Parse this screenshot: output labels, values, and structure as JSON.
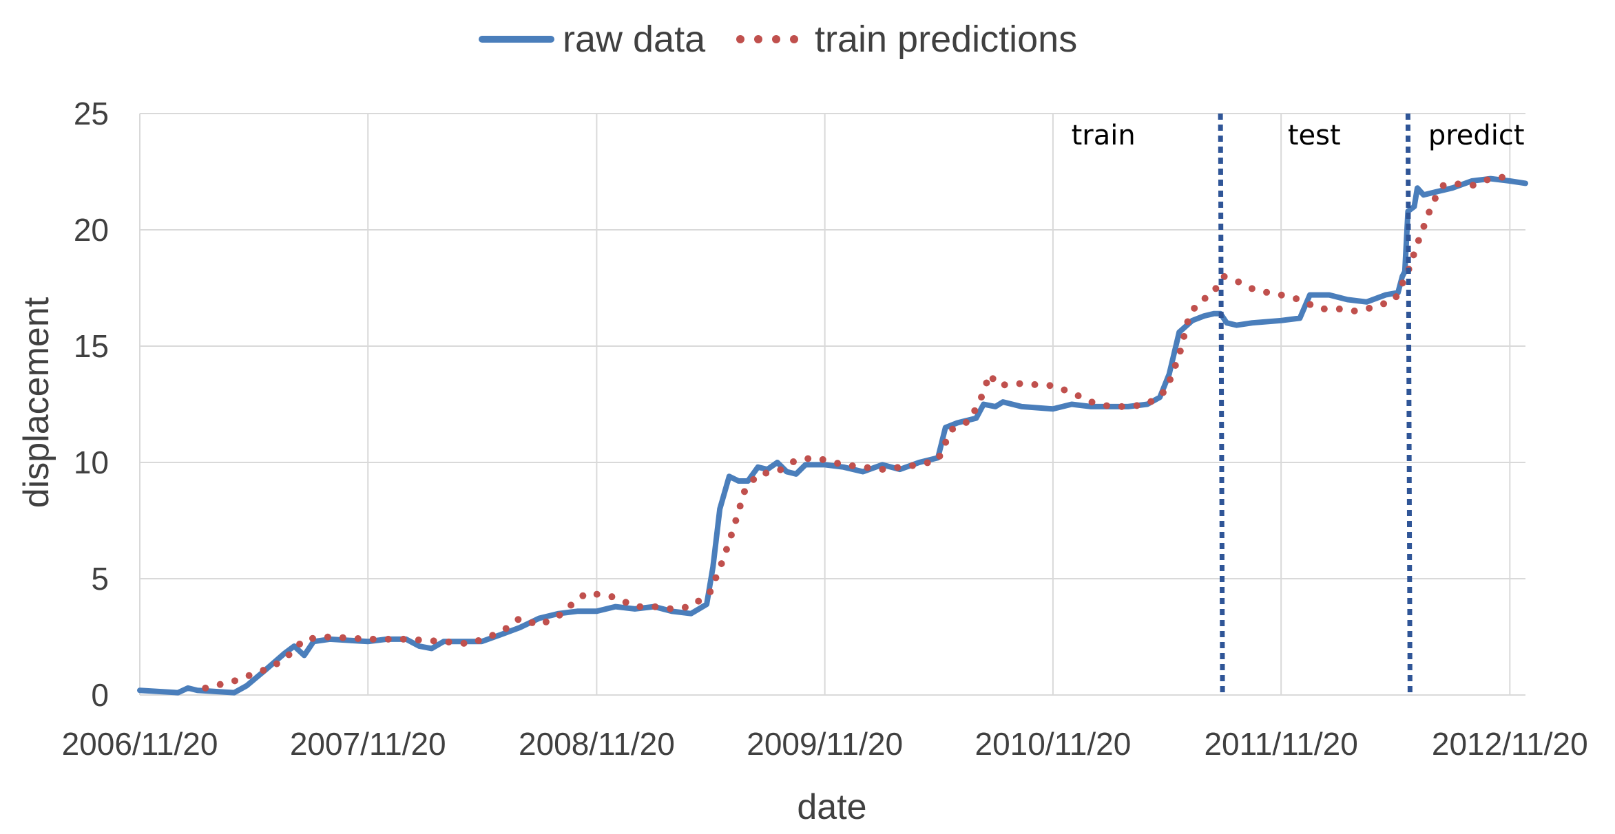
{
  "chart_data": {
    "type": "line",
    "title": "",
    "xlabel": "date",
    "ylabel": "displacement",
    "x_axis": {
      "ticks": [
        "2006/11/20",
        "2007/11/20",
        "2008/11/20",
        "2009/11/20",
        "2010/11/20",
        "2011/11/20",
        "2012/11/20"
      ],
      "range": [
        "2006/11/20",
        "2012/12/15"
      ]
    },
    "ylim": [
      0,
      25
    ],
    "yticks": [
      0,
      5,
      10,
      15,
      20,
      25
    ],
    "grid": true,
    "legend": "top-center",
    "regions": [
      {
        "label": "train",
        "boundary_end": "2011/08/15"
      },
      {
        "label": "test",
        "boundary_end": "2012/06/10"
      },
      {
        "label": "predict"
      }
    ],
    "series": [
      {
        "name": "raw data",
        "style": "solid",
        "color": "#4a7ebb",
        "points": [
          [
            "2006/11/20",
            0.2
          ],
          [
            "2007/01/20",
            0.1
          ],
          [
            "2007/02/05",
            0.3
          ],
          [
            "2007/02/20",
            0.2
          ],
          [
            "2007/04/20",
            0.1
          ],
          [
            "2007/05/10",
            0.4
          ],
          [
            "2007/06/10",
            1.1
          ],
          [
            "2007/07/10",
            1.8
          ],
          [
            "2007/07/25",
            2.1
          ],
          [
            "2007/08/10",
            1.7
          ],
          [
            "2007/08/25",
            2.3
          ],
          [
            "2007/09/20",
            2.4
          ],
          [
            "2007/11/20",
            2.3
          ],
          [
            "2007/12/20",
            2.4
          ],
          [
            "2008/01/20",
            2.4
          ],
          [
            "2008/02/10",
            2.1
          ],
          [
            "2008/03/01",
            2.0
          ],
          [
            "2008/03/20",
            2.3
          ],
          [
            "2008/04/20",
            2.3
          ],
          [
            "2008/05/20",
            2.3
          ],
          [
            "2008/06/20",
            2.6
          ],
          [
            "2008/07/20",
            2.9
          ],
          [
            "2008/08/20",
            3.3
          ],
          [
            "2008/09/20",
            3.5
          ],
          [
            "2008/10/20",
            3.6
          ],
          [
            "2008/11/20",
            3.6
          ],
          [
            "2008/12/20",
            3.8
          ],
          [
            "2009/01/20",
            3.7
          ],
          [
            "2009/02/20",
            3.8
          ],
          [
            "2009/03/20",
            3.6
          ],
          [
            "2009/04/20",
            3.5
          ],
          [
            "2009/05/15",
            3.9
          ],
          [
            "2009/05/25",
            5.5
          ],
          [
            "2009/06/05",
            8.0
          ],
          [
            "2009/06/20",
            9.4
          ],
          [
            "2009/07/05",
            9.2
          ],
          [
            "2009/07/20",
            9.2
          ],
          [
            "2009/08/05",
            9.8
          ],
          [
            "2009/08/20",
            9.7
          ],
          [
            "2009/09/05",
            10.0
          ],
          [
            "2009/09/20",
            9.6
          ],
          [
            "2009/10/05",
            9.5
          ],
          [
            "2009/10/20",
            9.9
          ],
          [
            "2009/11/20",
            9.9
          ],
          [
            "2009/12/20",
            9.8
          ],
          [
            "2010/01/20",
            9.6
          ],
          [
            "2010/02/20",
            9.9
          ],
          [
            "2010/03/20",
            9.7
          ],
          [
            "2010/04/20",
            10.0
          ],
          [
            "2010/05/20",
            10.2
          ],
          [
            "2010/06/01",
            11.5
          ],
          [
            "2010/06/20",
            11.7
          ],
          [
            "2010/07/20",
            11.9
          ],
          [
            "2010/08/01",
            12.5
          ],
          [
            "2010/08/20",
            12.4
          ],
          [
            "2010/09/01",
            12.6
          ],
          [
            "2010/10/01",
            12.4
          ],
          [
            "2010/11/20",
            12.3
          ],
          [
            "2010/12/20",
            12.5
          ],
          [
            "2011/01/20",
            12.4
          ],
          [
            "2011/03/20",
            12.4
          ],
          [
            "2011/04/20",
            12.5
          ],
          [
            "2011/05/10",
            12.8
          ],
          [
            "2011/05/25",
            13.8
          ],
          [
            "2011/06/10",
            15.6
          ],
          [
            "2011/07/01",
            16.1
          ],
          [
            "2011/07/20",
            16.3
          ],
          [
            "2011/08/05",
            16.4
          ],
          [
            "2011/08/15",
            16.4
          ],
          [
            "2011/08/25",
            16.0
          ],
          [
            "2011/09/10",
            15.9
          ],
          [
            "2011/10/05",
            16.0
          ],
          [
            "2011/11/20",
            16.1
          ],
          [
            "2011/12/20",
            16.2
          ],
          [
            "2012/01/05",
            17.2
          ],
          [
            "2012/02/05",
            17.2
          ],
          [
            "2012/03/05",
            17.0
          ],
          [
            "2012/04/05",
            16.9
          ],
          [
            "2012/05/05",
            17.2
          ],
          [
            "2012/05/25",
            17.3
          ],
          [
            "2012/06/01",
            18.0
          ],
          [
            "2012/06/05",
            18.2
          ],
          [
            "2012/06/10",
            20.8
          ],
          [
            "2012/06/20",
            21.0
          ],
          [
            "2012/06/25",
            21.8
          ],
          [
            "2012/07/05",
            21.5
          ],
          [
            "2012/07/20",
            21.6
          ],
          [
            "2012/08/20",
            21.8
          ],
          [
            "2012/09/20",
            22.1
          ],
          [
            "2012/10/20",
            22.2
          ],
          [
            "2012/11/20",
            22.1
          ],
          [
            "2012/12/15",
            22.0
          ]
        ]
      },
      {
        "name": "train predictions",
        "style": "dotted",
        "color": "#c0504d",
        "points": [
          [
            "2007/03/05",
            0.3
          ],
          [
            "2007/04/20",
            0.6
          ],
          [
            "2007/05/20",
            0.9
          ],
          [
            "2007/06/20",
            1.2
          ],
          [
            "2007/07/20",
            1.8
          ],
          [
            "2007/08/10",
            2.4
          ],
          [
            "2007/09/20",
            2.5
          ],
          [
            "2007/11/20",
            2.4
          ],
          [
            "2008/01/20",
            2.4
          ],
          [
            "2008/03/20",
            2.3
          ],
          [
            "2008/05/01",
            2.2
          ],
          [
            "2008/06/20",
            2.7
          ],
          [
            "2008/07/20",
            3.3
          ],
          [
            "2008/08/20",
            3.0
          ],
          [
            "2008/09/20",
            3.4
          ],
          [
            "2008/10/20",
            4.1
          ],
          [
            "2008/11/05",
            4.4
          ],
          [
            "2008/12/20",
            4.2
          ],
          [
            "2009/01/20",
            3.8
          ],
          [
            "2009/02/20",
            3.8
          ],
          [
            "2009/03/20",
            3.7
          ],
          [
            "2009/04/20",
            3.8
          ],
          [
            "2009/05/20",
            4.4
          ],
          [
            "2009/06/10",
            5.8
          ],
          [
            "2009/06/25",
            7.0
          ],
          [
            "2009/07/15",
            8.8
          ],
          [
            "2009/08/05",
            9.5
          ],
          [
            "2009/09/05",
            9.6
          ],
          [
            "2009/10/05",
            10.1
          ],
          [
            "2009/11/05",
            10.2
          ],
          [
            "2009/12/20",
            9.9
          ],
          [
            "2010/02/20",
            9.7
          ],
          [
            "2010/04/20",
            9.9
          ],
          [
            "2010/05/20",
            10.1
          ],
          [
            "2010/06/10",
            11.4
          ],
          [
            "2010/07/10",
            11.8
          ],
          [
            "2010/08/01",
            13.0
          ],
          [
            "2010/08/10",
            13.8
          ],
          [
            "2010/08/25",
            13.3
          ],
          [
            "2010/09/20",
            13.4
          ],
          [
            "2010/11/20",
            13.3
          ],
          [
            "2010/12/20",
            13.0
          ],
          [
            "2011/01/20",
            12.6
          ],
          [
            "2011/02/20",
            12.4
          ],
          [
            "2011/03/20",
            12.4
          ],
          [
            "2011/04/20",
            12.5
          ],
          [
            "2011/05/20",
            13.1
          ],
          [
            "2011/06/10",
            14.6
          ],
          [
            "2011/06/25",
            16.2
          ],
          [
            "2011/07/10",
            16.9
          ],
          [
            "2011/08/01",
            17.2
          ],
          [
            "2011/08/20",
            18.0
          ],
          [
            "2011/09/10",
            17.8
          ],
          [
            "2011/10/10",
            17.4
          ],
          [
            "2011/11/20",
            17.2
          ],
          [
            "2011/12/20",
            17.0
          ],
          [
            "2012/01/20",
            16.6
          ],
          [
            "2012/02/20",
            16.6
          ],
          [
            "2012/03/20",
            16.5
          ],
          [
            "2012/04/20",
            16.7
          ],
          [
            "2012/05/20",
            17.0
          ],
          [
            "2012/06/10",
            18.2
          ],
          [
            "2012/06/25",
            19.4
          ],
          [
            "2012/07/20",
            21.2
          ],
          [
            "2012/08/05",
            21.9
          ],
          [
            "2012/08/20",
            22.0
          ],
          [
            "2012/09/20",
            21.9
          ],
          [
            "2012/10/20",
            22.2
          ],
          [
            "2012/11/20",
            22.3
          ]
        ]
      }
    ]
  }
}
